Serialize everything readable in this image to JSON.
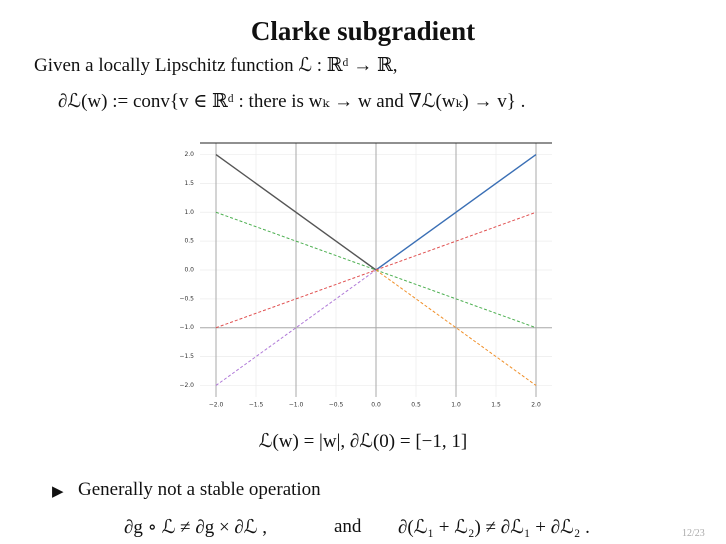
{
  "title": "Clarke subgradient",
  "intro": "Given a locally Lipschitz function ℒ : ℝᵈ → ℝ,",
  "definition": "∂ℒ(w) := conv{v ∈ ℝᵈ :  there is wₖ → w and ∇ℒ(wₖ) → v} .",
  "chart_data": {
    "type": "line",
    "caption": "ℒ(w) = |w|, ∂ℒ(0) = [−1, 1]",
    "xlim": [
      -2.2,
      2.2
    ],
    "ylim": [
      -2.2,
      2.2
    ],
    "xticks": [
      {
        "value": -2,
        "label": "−2.0"
      },
      {
        "value": -1.5,
        "label": "−1.5"
      },
      {
        "value": -1,
        "label": "−1.0"
      },
      {
        "value": -0.5,
        "label": "−0.5"
      },
      {
        "value": 0,
        "label": "0.0"
      },
      {
        "value": 0.5,
        "label": "0.5"
      },
      {
        "value": 1,
        "label": "1.0"
      },
      {
        "value": 1.5,
        "label": "1.5"
      },
      {
        "value": 2,
        "label": "2.0"
      }
    ],
    "yticks": [
      {
        "value": 2,
        "label": "2.0"
      },
      {
        "value": 1.5,
        "label": "1.5"
      },
      {
        "value": 1,
        "label": "1.0"
      },
      {
        "value": 0.5,
        "label": "0.5"
      },
      {
        "value": 0,
        "label": "0.0"
      },
      {
        "value": -0.5,
        "label": "−0.5"
      },
      {
        "value": -1,
        "label": "−1.0"
      },
      {
        "value": -1.5,
        "label": "−1.5"
      },
      {
        "value": -2,
        "label": "−2.0"
      }
    ],
    "grid": true,
    "vlines": [
      -2,
      -1,
      0,
      1,
      2
    ],
    "hlines": [
      -1
    ],
    "series": [
      {
        "color": "#555555",
        "dash": false,
        "x": [
          -2,
          0
        ],
        "values": [
          2,
          0
        ]
      },
      {
        "color": "#3a6fb5",
        "dash": false,
        "x": [
          0,
          2
        ],
        "values": [
          0,
          2
        ]
      },
      {
        "color": "#4caf50",
        "dash": true,
        "x": [
          -2,
          2
        ],
        "values": [
          1,
          -1
        ]
      },
      {
        "color": "#e05050",
        "dash": true,
        "x": [
          -2,
          2
        ],
        "values": [
          -1,
          1
        ]
      },
      {
        "color": "#b07ad8",
        "dash": true,
        "x": [
          -2,
          0
        ],
        "values": [
          -2,
          0
        ]
      },
      {
        "color": "#f0902a",
        "dash": true,
        "x": [
          0,
          2
        ],
        "values": [
          0,
          -2
        ]
      }
    ]
  },
  "bullet": "Generally not a stable operation",
  "formula_left": "∂g ∘ ℒ ≠ ∂g × ∂ℒ ,",
  "formula_connector": "and",
  "formula_right": "∂(ℒ₁ + ℒ₂) ≠ ∂ℒ₁ + ∂ℒ₂ .",
  "page_number": "12/23"
}
